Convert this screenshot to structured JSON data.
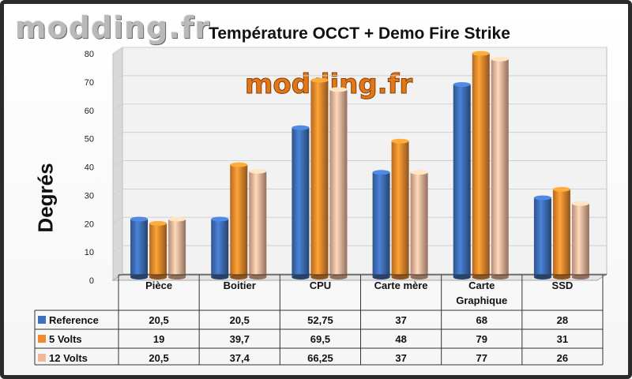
{
  "logo_text": "modding.fr",
  "watermark_text": "modding.fr",
  "chart_data": {
    "type": "bar",
    "title": "Température OCCT + Demo Fire Strike",
    "ylabel": "Degrés",
    "ylim": [
      0,
      80
    ],
    "yticks": [
      "0",
      "10",
      "20",
      "30",
      "40",
      "50",
      "60",
      "70",
      "80"
    ],
    "categories": [
      "Pièce",
      "Boitier",
      "CPU",
      "Carte mère",
      "Carte Graphique",
      "SSD"
    ],
    "series": [
      {
        "name": "Reference",
        "color": "#3f6fb8",
        "values": [
          20.5,
          20.5,
          52.75,
          37,
          68,
          28
        ],
        "labels": [
          "20,5",
          "20,5",
          "52,75",
          "37",
          "68",
          "28"
        ]
      },
      {
        "name": "5 Volts",
        "color": "#ef8a2e",
        "values": [
          19,
          39.7,
          69.5,
          48,
          79,
          31
        ],
        "labels": [
          "19",
          "39,7",
          "69,5",
          "48",
          "79",
          "31"
        ]
      },
      {
        "name": "12 Volts",
        "color": "#f3b89c",
        "values": [
          20.5,
          37.4,
          66.25,
          37,
          77,
          26
        ],
        "labels": [
          "20,5",
          "37,4",
          "66,25",
          "37",
          "77",
          "26"
        ]
      }
    ],
    "grid": true,
    "legend": "data-table"
  }
}
